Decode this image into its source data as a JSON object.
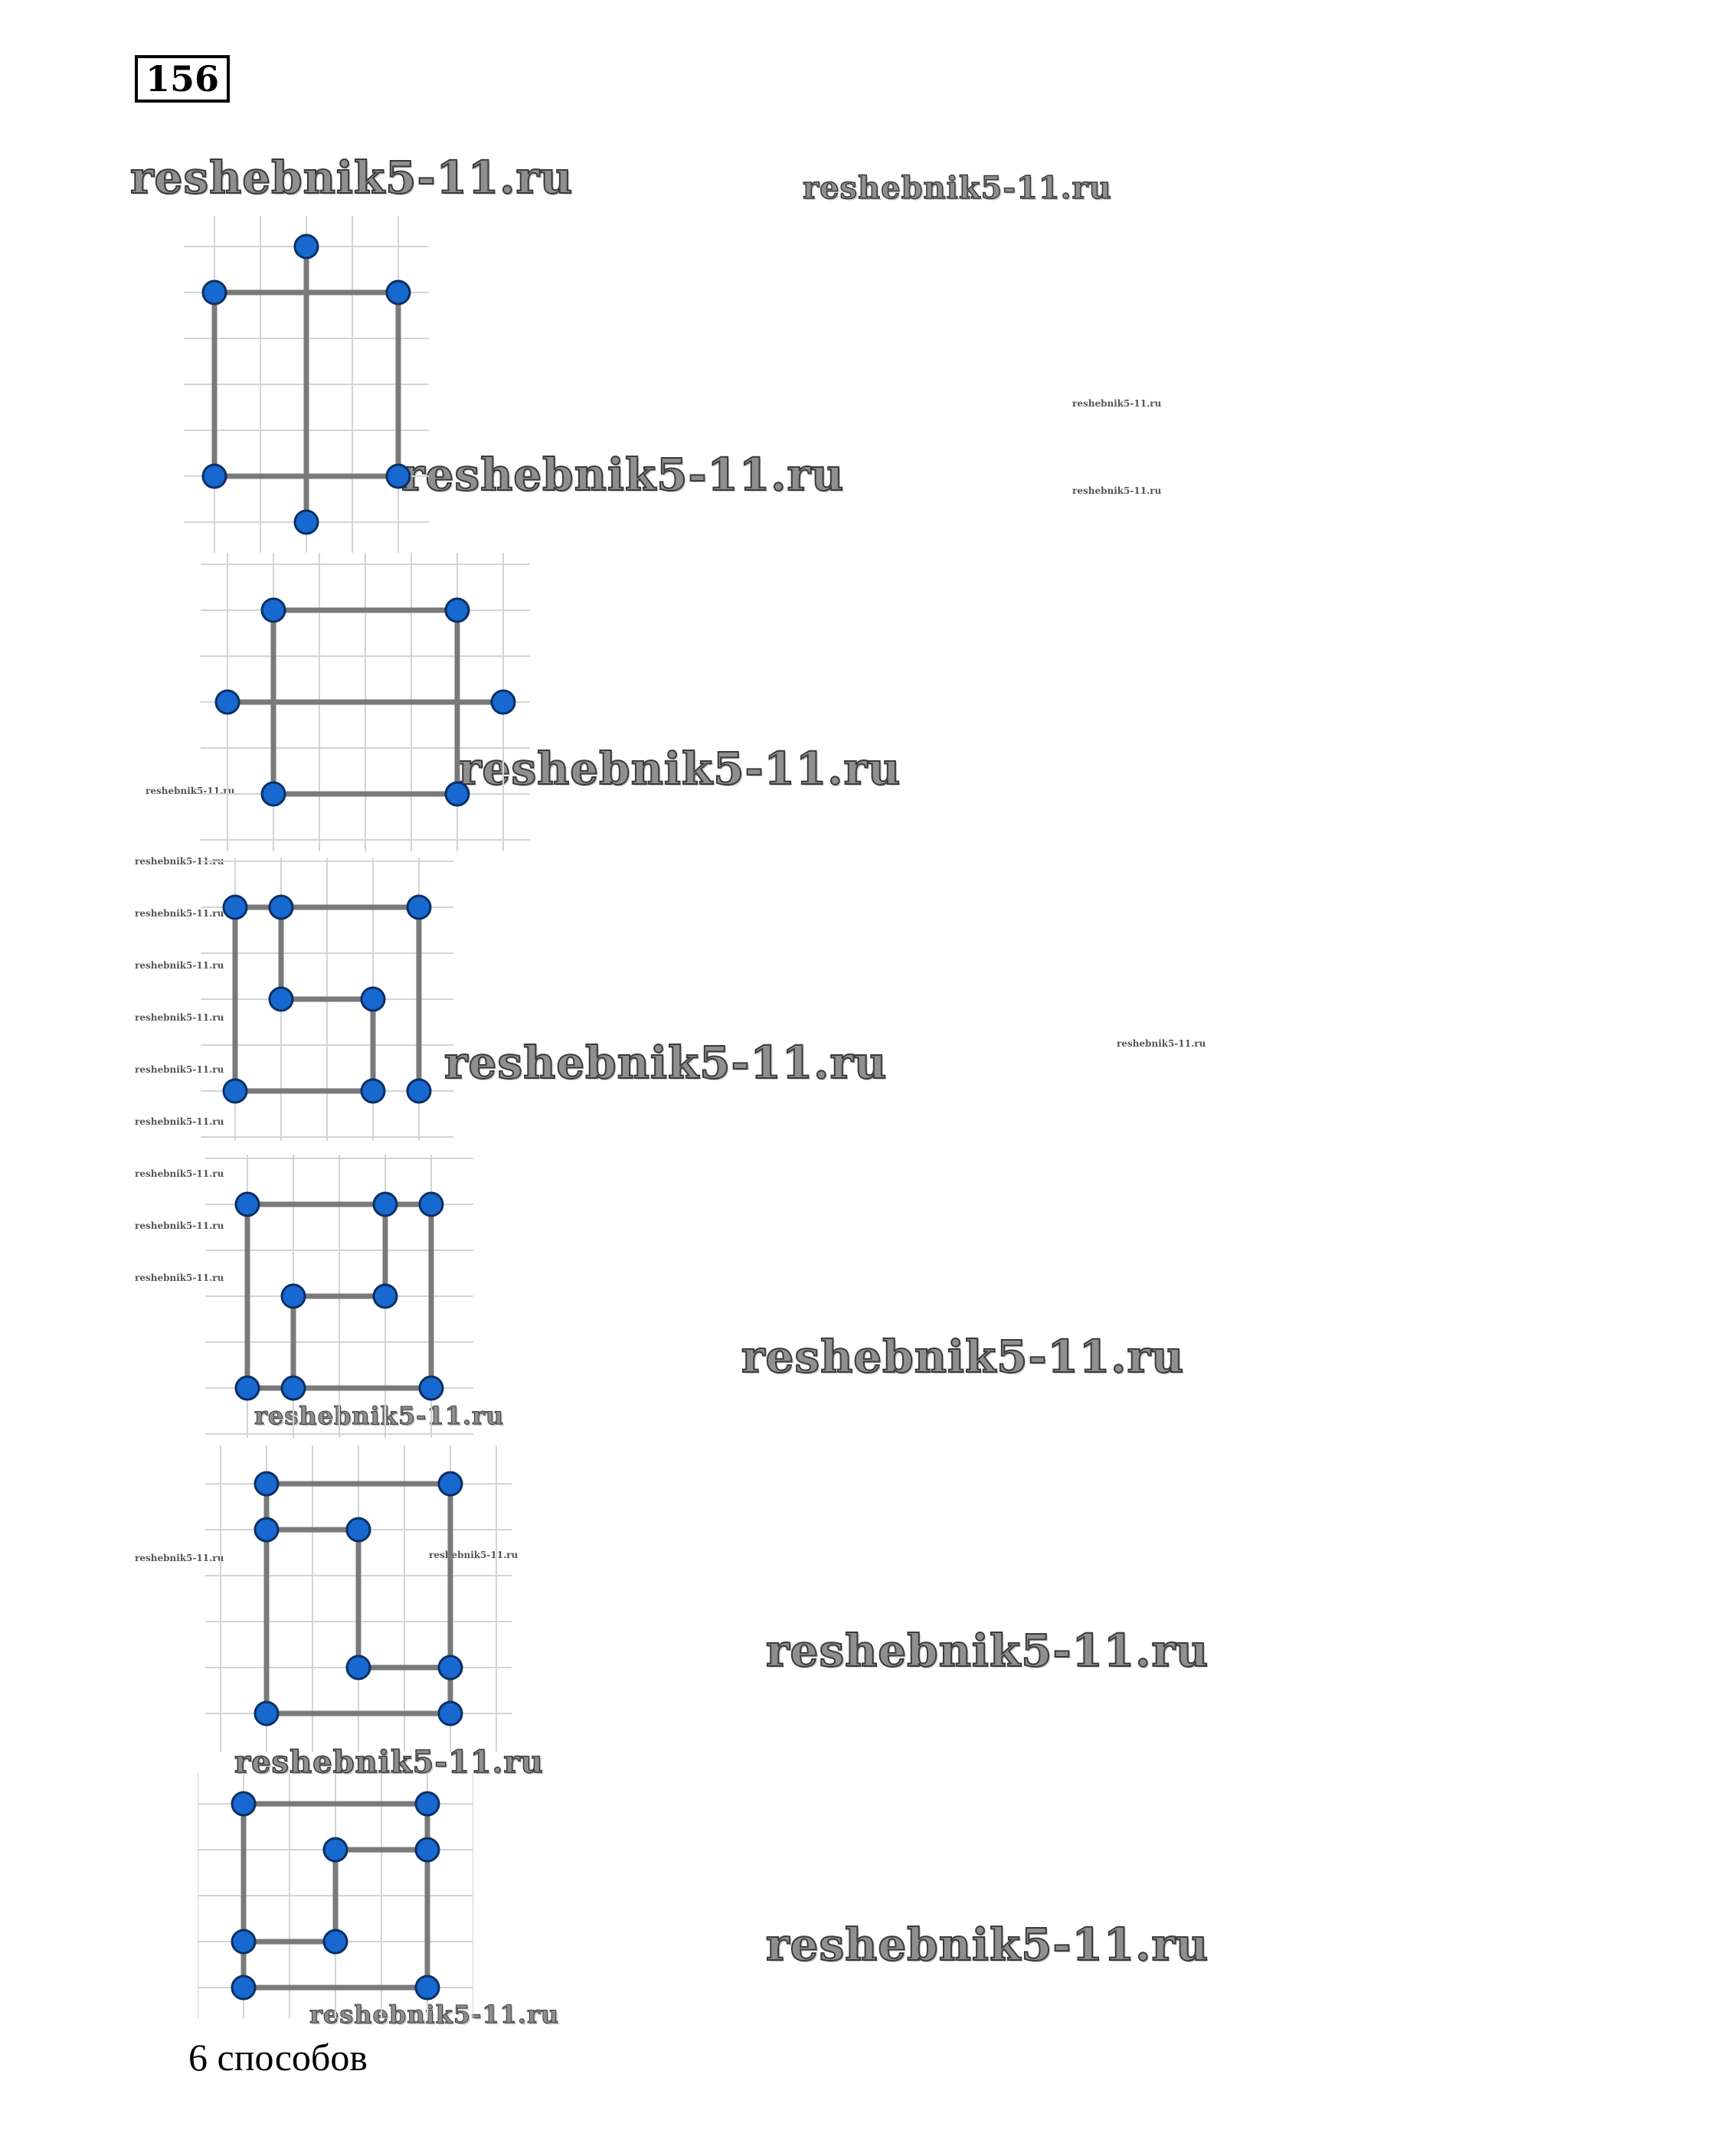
{
  "problem": {
    "number": "156"
  },
  "watermark": {
    "text": "reshebnik5-11.ru"
  },
  "answer": {
    "text": "6 способов"
  },
  "colors": {
    "dot_fill": "#1769cf",
    "dot_stroke": "#0b2f63",
    "line": "#7a7a7a",
    "grid": "#d4d4d4",
    "watermark_fill": "#8f8f8f",
    "watermark_outline": "#3a3a3a"
  },
  "figures": [
    {
      "name": "way-1",
      "points": [
        [
          2,
          -1
        ],
        [
          0,
          0
        ],
        [
          4,
          0
        ],
        [
          0,
          4
        ],
        [
          4,
          4
        ],
        [
          2,
          5
        ]
      ],
      "segments": [
        [
          [
            0,
            0
          ],
          [
            4,
            0
          ]
        ],
        [
          [
            4,
            0
          ],
          [
            4,
            4
          ]
        ],
        [
          [
            4,
            4
          ],
          [
            0,
            4
          ]
        ],
        [
          [
            0,
            4
          ],
          [
            0,
            0
          ]
        ],
        [
          [
            2,
            -1
          ],
          [
            2,
            5
          ]
        ]
      ]
    },
    {
      "name": "way-2",
      "points": [
        [
          1,
          0
        ],
        [
          5,
          0
        ],
        [
          0,
          2
        ],
        [
          6,
          2
        ],
        [
          1,
          4
        ],
        [
          5,
          4
        ]
      ],
      "segments": [
        [
          [
            1,
            0
          ],
          [
            5,
            0
          ]
        ],
        [
          [
            5,
            0
          ],
          [
            5,
            4
          ]
        ],
        [
          [
            5,
            4
          ],
          [
            1,
            4
          ]
        ],
        [
          [
            1,
            4
          ],
          [
            1,
            0
          ]
        ],
        [
          [
            0,
            2
          ],
          [
            6,
            2
          ]
        ]
      ]
    },
    {
      "name": "way-3",
      "points": [
        [
          0,
          0
        ],
        [
          1,
          0
        ],
        [
          4,
          0
        ],
        [
          1,
          2
        ],
        [
          3,
          2
        ],
        [
          0,
          4
        ],
        [
          3,
          4
        ],
        [
          4,
          4
        ]
      ],
      "segments": [
        [
          [
            0,
            0
          ],
          [
            4,
            0
          ]
        ],
        [
          [
            4,
            0
          ],
          [
            4,
            4
          ]
        ],
        [
          [
            1,
            0
          ],
          [
            1,
            2
          ]
        ],
        [
          [
            1,
            2
          ],
          [
            3,
            2
          ]
        ],
        [
          [
            3,
            2
          ],
          [
            3,
            4
          ]
        ],
        [
          [
            3,
            4
          ],
          [
            0,
            4
          ]
        ],
        [
          [
            0,
            4
          ],
          [
            0,
            0
          ]
        ]
      ]
    },
    {
      "name": "way-4",
      "points": [
        [
          0,
          0
        ],
        [
          3,
          0
        ],
        [
          4,
          0
        ],
        [
          1,
          2
        ],
        [
          3,
          2
        ],
        [
          0,
          4
        ],
        [
          1,
          4
        ],
        [
          4,
          4
        ]
      ],
      "segments": [
        [
          [
            0,
            0
          ],
          [
            4,
            0
          ]
        ],
        [
          [
            4,
            0
          ],
          [
            4,
            4
          ]
        ],
        [
          [
            4,
            4
          ],
          [
            0,
            4
          ]
        ],
        [
          [
            0,
            4
          ],
          [
            0,
            0
          ]
        ],
        [
          [
            3,
            0
          ],
          [
            3,
            2
          ]
        ],
        [
          [
            3,
            2
          ],
          [
            1,
            2
          ]
        ],
        [
          [
            1,
            2
          ],
          [
            1,
            4
          ]
        ]
      ]
    },
    {
      "name": "way-5",
      "points": [
        [
          0,
          0
        ],
        [
          4,
          0
        ],
        [
          0,
          1
        ],
        [
          2,
          1
        ],
        [
          2,
          4
        ],
        [
          4,
          4
        ],
        [
          0,
          5
        ],
        [
          4,
          5
        ]
      ],
      "segments": [
        [
          [
            0,
            0
          ],
          [
            4,
            0
          ]
        ],
        [
          [
            4,
            0
          ],
          [
            4,
            5
          ]
        ],
        [
          [
            4,
            5
          ],
          [
            0,
            5
          ]
        ],
        [
          [
            0,
            5
          ],
          [
            0,
            0
          ]
        ],
        [
          [
            0,
            1
          ],
          [
            2,
            1
          ]
        ],
        [
          [
            2,
            1
          ],
          [
            2,
            4
          ]
        ],
        [
          [
            2,
            4
          ],
          [
            4,
            4
          ]
        ]
      ]
    },
    {
      "name": "way-6",
      "points": [
        [
          0,
          0
        ],
        [
          4,
          0
        ],
        [
          2,
          1
        ],
        [
          4,
          1
        ],
        [
          0,
          3
        ],
        [
          2,
          3
        ],
        [
          0,
          4
        ],
        [
          4,
          4
        ]
      ],
      "segments": [
        [
          [
            0,
            0
          ],
          [
            4,
            0
          ]
        ],
        [
          [
            4,
            0
          ],
          [
            4,
            4
          ]
        ],
        [
          [
            4,
            4
          ],
          [
            0,
            4
          ]
        ],
        [
          [
            0,
            4
          ],
          [
            0,
            0
          ]
        ],
        [
          [
            4,
            1
          ],
          [
            2,
            1
          ]
        ],
        [
          [
            2,
            1
          ],
          [
            2,
            3
          ]
        ],
        [
          [
            2,
            3
          ],
          [
            0,
            3
          ]
        ]
      ]
    }
  ]
}
